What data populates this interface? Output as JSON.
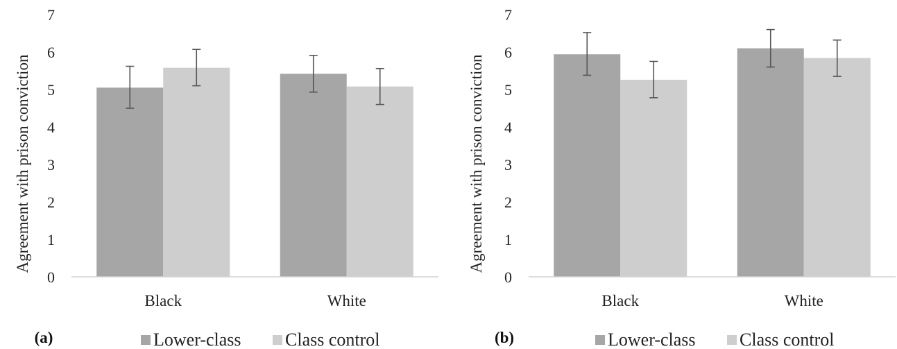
{
  "chart_data": [
    {
      "type": "bar",
      "panel_label": "(a)",
      "ylabel": "Agreement with prison conviction",
      "ylim": [
        0,
        7
      ],
      "yticks": [
        0,
        1,
        2,
        3,
        4,
        5,
        6,
        7
      ],
      "categories": [
        "Black",
        "White"
      ],
      "series": [
        {
          "name": "Lower-class",
          "values": [
            5.05,
            5.42
          ],
          "err_low": [
            4.5,
            4.93
          ],
          "err_high": [
            5.62,
            5.91
          ]
        },
        {
          "name": "Class control",
          "values": [
            5.58,
            5.08
          ],
          "err_low": [
            5.1,
            4.6
          ],
          "err_high": [
            6.07,
            5.56
          ]
        }
      ],
      "legend_position": "bottom-center",
      "grid": false
    },
    {
      "type": "bar",
      "panel_label": "(b)",
      "ylabel": "Agreement with prison conviction",
      "ylim": [
        0,
        7
      ],
      "yticks": [
        0,
        1,
        2,
        3,
        4,
        5,
        6,
        7
      ],
      "categories": [
        "Black",
        "White"
      ],
      "series": [
        {
          "name": "Lower-class",
          "values": [
            5.94,
            6.1
          ],
          "err_low": [
            5.38,
            5.6
          ],
          "err_high": [
            6.52,
            6.6
          ]
        },
        {
          "name": "Class control",
          "values": [
            5.26,
            5.84
          ],
          "err_low": [
            4.78,
            5.35
          ],
          "err_high": [
            5.75,
            6.32
          ]
        }
      ],
      "legend_position": "bottom-center",
      "grid": false
    }
  ],
  "colors": {
    "Lower-class": "#a6a6a6",
    "Class control": "#cecece",
    "axis": "#d4d4d4",
    "error": "#555555"
  }
}
